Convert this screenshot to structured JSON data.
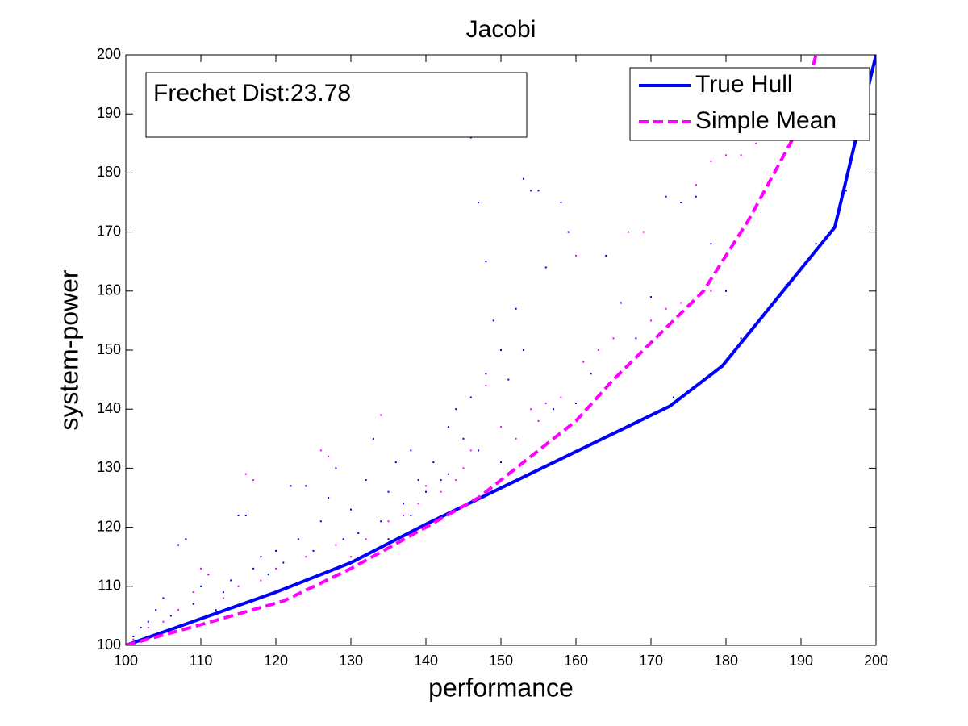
{
  "chart_data": {
    "type": "scatter",
    "title": "Jacobi",
    "x_label": "performance",
    "y_label": "system-power",
    "annotation": "Frechet Dist:23.78",
    "xlim": [
      100,
      200
    ],
    "ylim": [
      100,
      200
    ],
    "xticks": [
      100,
      110,
      120,
      130,
      140,
      150,
      160,
      170,
      180,
      190,
      200
    ],
    "yticks": [
      100,
      110,
      120,
      130,
      140,
      150,
      160,
      170,
      180,
      190,
      200
    ],
    "legend": "upper right",
    "grid": false,
    "series": [
      {
        "name": "True Hull",
        "color": "#0000ff",
        "style": "solid",
        "x": [
          100,
          120,
          130,
          140,
          172.5,
          179.5,
          194.5,
          200
        ],
        "values": [
          100,
          109,
          114,
          120.5,
          140.5,
          147.3,
          170.8,
          200
        ]
      },
      {
        "name": "Simple Mean",
        "color": "#ff00ff",
        "style": "dashed",
        "x": [
          100,
          110,
          121,
          130,
          140,
          147,
          152,
          160,
          165,
          173,
          177,
          183,
          189,
          192
        ],
        "values": [
          100,
          103.5,
          107.5,
          113,
          120,
          125,
          130,
          138,
          145,
          155,
          160,
          172,
          186,
          200
        ]
      }
    ],
    "points": [
      {
        "color": "#0000ff",
        "x": [
          101,
          102,
          103,
          104,
          105,
          106,
          107,
          108,
          109,
          110,
          111,
          112,
          113,
          114,
          115,
          116,
          117,
          118,
          119,
          120,
          121,
          122,
          123,
          124,
          125,
          126,
          127,
          128,
          129,
          130,
          131,
          132,
          133,
          134,
          135,
          136,
          137,
          138,
          139,
          140,
          141,
          142,
          143,
          144,
          145,
          146,
          146,
          147,
          148,
          148,
          149,
          150,
          151,
          152,
          153,
          153,
          154,
          155,
          156,
          157,
          158,
          159,
          160,
          162,
          164,
          166,
          168,
          170,
          172,
          174,
          176,
          178,
          180,
          182,
          185,
          188,
          192,
          196,
          173,
          143,
          147,
          150,
          138,
          135
        ],
        "values": [
          101.5,
          103,
          104,
          106,
          108,
          105,
          117,
          118,
          107,
          110,
          112,
          106,
          109,
          111,
          122,
          122,
          113,
          115,
          112,
          116,
          114,
          127,
          118,
          127,
          116,
          121,
          125,
          130,
          118,
          123,
          119,
          128,
          135,
          121,
          126,
          131,
          124,
          133,
          128,
          126,
          131,
          128,
          137,
          140,
          135,
          142,
          186,
          175,
          165,
          146,
          155,
          150,
          145,
          157,
          150,
          179,
          177,
          177,
          164,
          140,
          175,
          170,
          141,
          146,
          166,
          158,
          152,
          159,
          176,
          175,
          176,
          168,
          160,
          152,
          156,
          161,
          168,
          177,
          142,
          129,
          133,
          131,
          122,
          118
        ]
      },
      {
        "color": "#ff00ff",
        "x": [
          101,
          103,
          105,
          107,
          109,
          110,
          111,
          113,
          115,
          116,
          117,
          118,
          120,
          122,
          124,
          126,
          127,
          128,
          130,
          132,
          134,
          135,
          137,
          139,
          140,
          142,
          144,
          146,
          148,
          150,
          152,
          154,
          156,
          158,
          160,
          161,
          163,
          165,
          167,
          169,
          170,
          172,
          174,
          176,
          178,
          180,
          182,
          184,
          186,
          178,
          166,
          155,
          145
        ],
        "values": [
          101,
          103,
          104,
          106,
          109,
          113,
          112,
          108,
          110,
          129,
          128,
          111,
          113,
          110,
          115,
          133,
          132,
          117,
          115,
          118,
          139,
          121,
          122,
          124,
          127,
          126,
          128,
          133,
          144,
          137,
          135,
          140,
          141,
          142,
          166,
          148,
          150,
          152,
          170,
          170,
          155,
          157,
          158,
          178,
          182,
          183,
          183,
          185,
          186,
          160,
          146,
          138,
          130
        ]
      }
    ]
  }
}
